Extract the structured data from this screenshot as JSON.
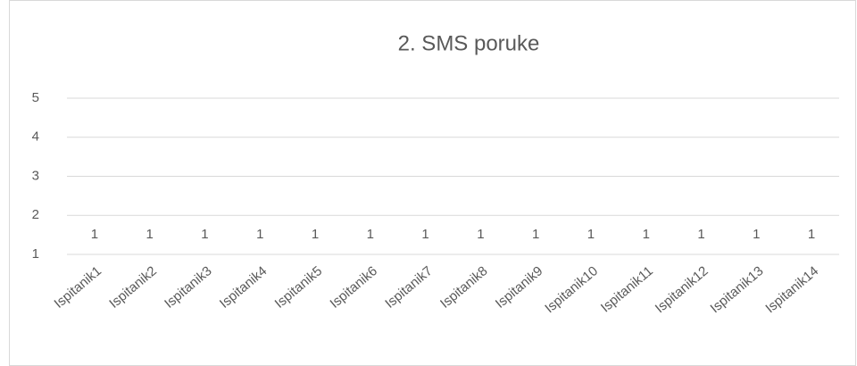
{
  "chart_data": {
    "type": "bar",
    "title": "2. SMS poruke",
    "categories": [
      "Ispitanik1",
      "Ispitanik2",
      "Ispitanik3",
      "Ispitanik4",
      "Ispitanik5",
      "Ispitanik6",
      "Ispitanik7",
      "Ispitanik8",
      "Ispitanik9",
      "Ispitanik10",
      "Ispitanik11",
      "Ispitanik12",
      "Ispitanik13",
      "Ispitanik14"
    ],
    "values": [
      1,
      1,
      1,
      1,
      1,
      1,
      1,
      1,
      1,
      1,
      1,
      1,
      1,
      1
    ],
    "color": "#4472c4",
    "ylim": [
      1,
      5
    ],
    "yticks": [
      1,
      2,
      3,
      4,
      5
    ],
    "grid": true
  }
}
